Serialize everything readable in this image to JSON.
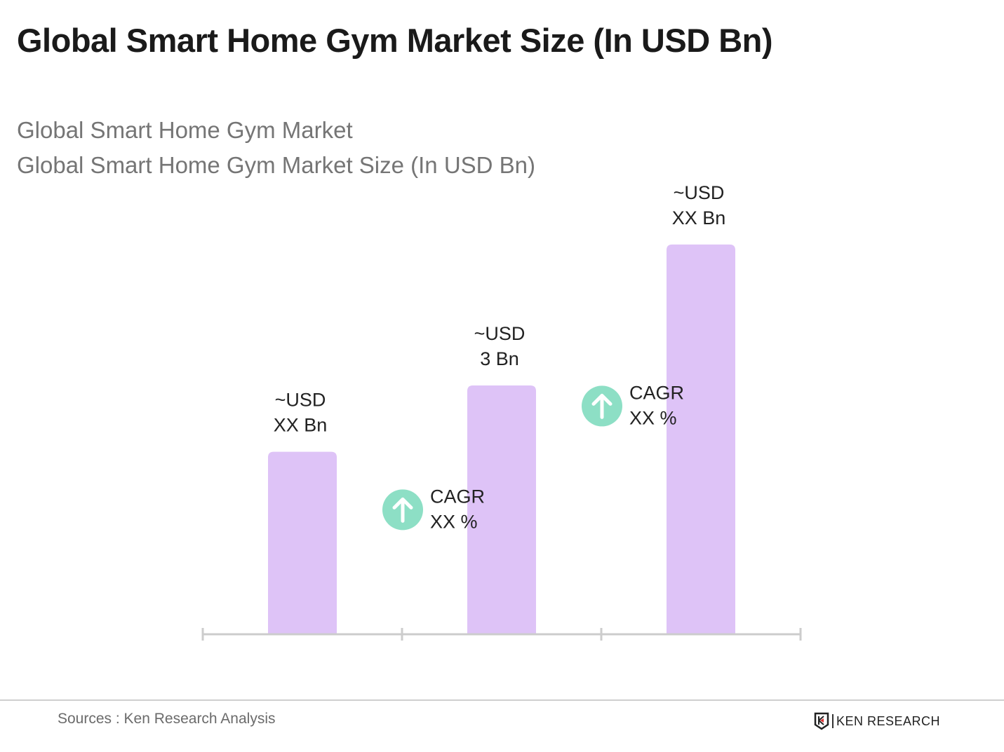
{
  "title": "Global Smart Home Gym Market Size (In USD Bn)",
  "subtitle_1": "Global Smart Home Gym Market",
  "subtitle_2": "Global Smart Home Gym Market Size (In USD Bn)",
  "chart_data": {
    "type": "bar",
    "title": "Global Smart Home Gym Market Size (In USD Bn)",
    "categories": [
      "",
      "",
      ""
    ],
    "values": [
      2.2,
      3,
      4.7
    ],
    "data_labels": [
      [
        "~USD",
        "XX Bn"
      ],
      [
        "~USD",
        "3 Bn"
      ],
      [
        "~USD",
        "XX Bn"
      ]
    ],
    "cagr_annotations": [
      [
        "CAGR",
        "XX %"
      ],
      [
        "CAGR",
        "XX %"
      ]
    ],
    "ylim": [
      0,
      4.8
    ],
    "grid": false,
    "colors": {
      "bar": "#dec3f7",
      "cagr_icon": "#8ddfc5",
      "axis": "#cccccc"
    }
  },
  "footer": {
    "source": "Sources : Ken Research Analysis",
    "logo": "KEN RESEARCH"
  }
}
